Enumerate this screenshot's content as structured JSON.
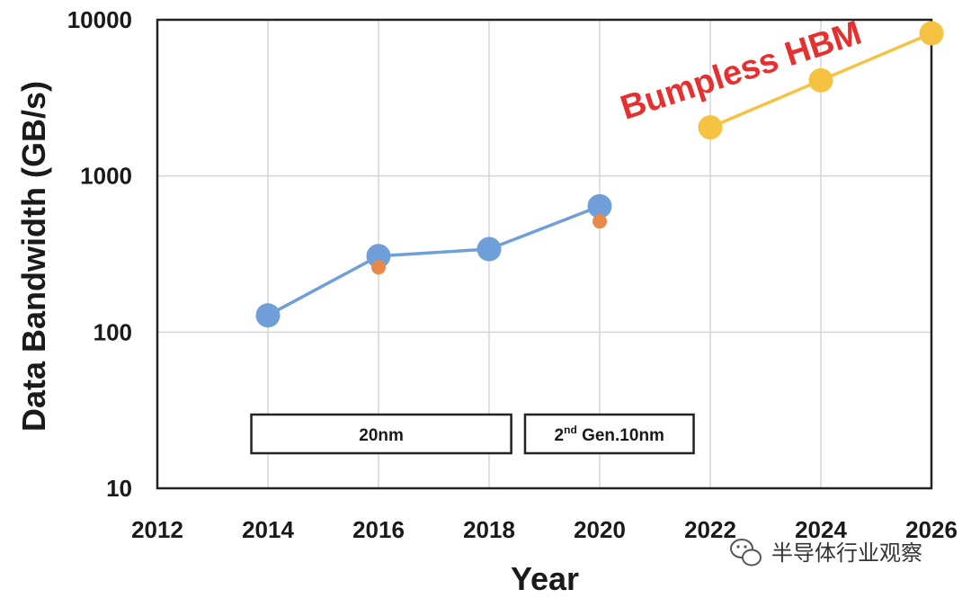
{
  "chart_data": {
    "type": "line",
    "xlabel": "Year",
    "ylabel": "Data Bandwidth (GB/s)",
    "xlim": [
      2012,
      2026
    ],
    "ylim": [
      10,
      10000
    ],
    "yscale": "log",
    "x_ticks": [
      "2012",
      "2014",
      "2016",
      "2018",
      "2020",
      "2022",
      "2024",
      "2026"
    ],
    "y_ticks": [
      "10",
      "100",
      "1000",
      "10000"
    ],
    "grid": true,
    "series": [
      {
        "color": "#6f9fd8",
        "marker": "large-circle",
        "connected": true,
        "points": [
          [
            2014,
            128
          ],
          [
            2016,
            307
          ],
          [
            2018,
            340
          ],
          [
            2020,
            640
          ]
        ]
      },
      {
        "color": "#e8894a",
        "marker": "small-circle",
        "connected": false,
        "points": [
          [
            2016,
            260
          ],
          [
            2020,
            512
          ]
        ]
      },
      {
        "name": "Bumpless HBM",
        "color": "#f5c242",
        "marker": "large-circle",
        "connected": true,
        "points": [
          [
            2022,
            2048
          ],
          [
            2024,
            4096
          ],
          [
            2026,
            8192
          ]
        ]
      }
    ],
    "annotations": [
      {
        "text": "Bumpless HBM",
        "color": "#e63030"
      },
      {
        "text": "20nm",
        "span": [
          2013.7,
          2018.4
        ]
      },
      {
        "text_main": "2",
        "text_sup": "nd",
        "text_rest": " Gen.10nm",
        "span": [
          2018.65,
          2021.7
        ]
      }
    ]
  },
  "watermark": {
    "text": "半导体行业观察",
    "icon": "wechat-icon"
  }
}
